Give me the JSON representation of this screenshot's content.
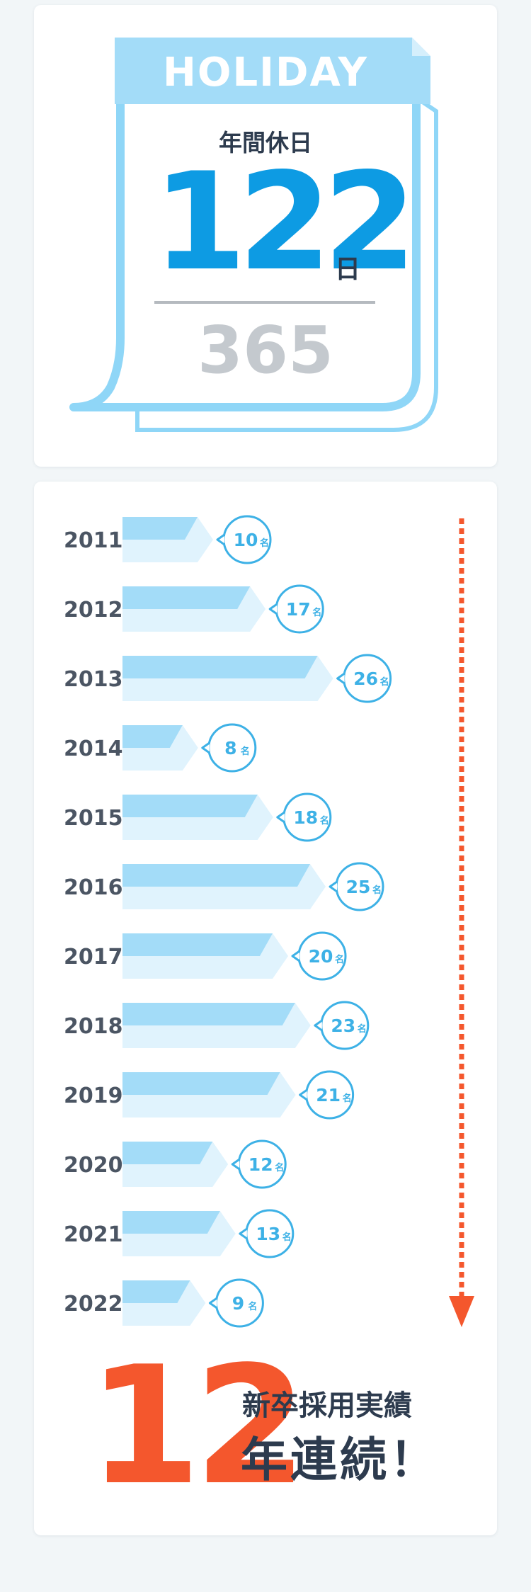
{
  "holiday": {
    "header": "HOLIDAY",
    "label": "年間休日",
    "days": "122",
    "unit": "日",
    "total": "365"
  },
  "chart_data": {
    "type": "bar",
    "orientation": "horizontal",
    "categories": [
      "2011",
      "2012",
      "2013",
      "2014",
      "2015",
      "2016",
      "2017",
      "2018",
      "2019",
      "2020",
      "2021",
      "2022"
    ],
    "values": [
      10,
      17,
      26,
      8,
      18,
      25,
      20,
      23,
      21,
      12,
      13,
      9
    ],
    "unit": "名",
    "bar_color": "#a3dcf8",
    "bar_light_color": "#e0f3fd",
    "bubble_color": "#3db1e6",
    "arrow_color": "#f4572d"
  },
  "streak": {
    "number": "12",
    "line1": "新卒採用実績",
    "line2": "年連続！"
  }
}
